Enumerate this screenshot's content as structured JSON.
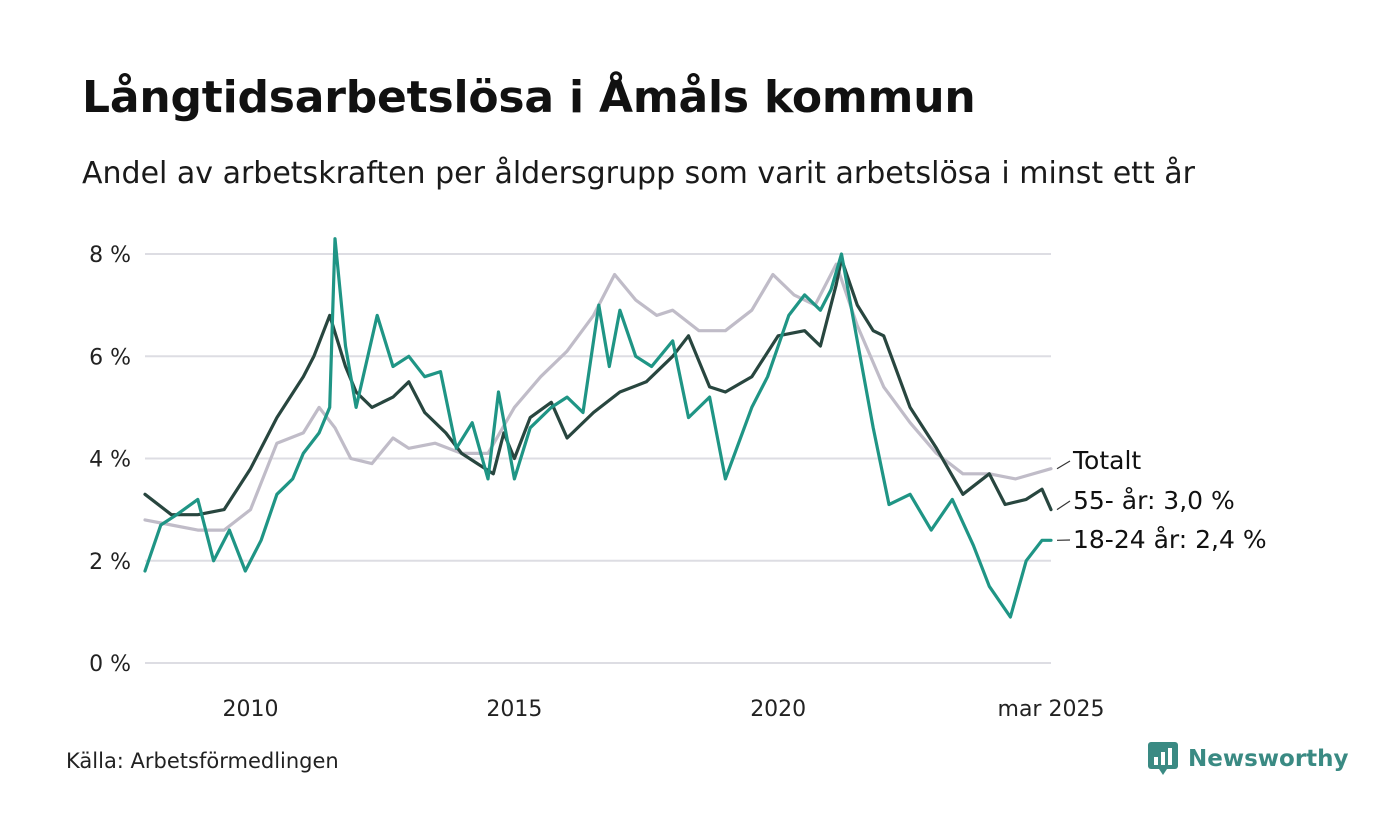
{
  "title": "Långtidsarbetslösa i Åmåls kommun",
  "subtitle": "Andel av arbetskraften per åldersgrupp som varit arbetslösa i minst ett år",
  "source": "Källa: Arbetsförmedlingen",
  "brand": {
    "name": "Newsworthy",
    "icon": "newsworthy-logo-icon",
    "color": "#3a8a83"
  },
  "chart_data": {
    "type": "line",
    "title": "Långtidsarbetslösa i Åmåls kommun",
    "subtitle": "Andel av arbetskraften per åldersgrupp som varit arbetslösa i minst ett år",
    "ylim": [
      0,
      8
    ],
    "xlim": [
      2008.0,
      2025.17
    ],
    "y_ticks": [
      {
        "value": 0,
        "label": "0 %"
      },
      {
        "value": 2,
        "label": "2 %"
      },
      {
        "value": 4,
        "label": "4 %"
      },
      {
        "value": 6,
        "label": "6 %"
      },
      {
        "value": 8,
        "label": "8 %"
      }
    ],
    "x_ticks": [
      {
        "value": 2010,
        "label": "2010"
      },
      {
        "value": 2015,
        "label": "2015"
      },
      {
        "value": 2020,
        "label": "2020"
      },
      {
        "value": 2025.17,
        "label": "mar 2025"
      }
    ],
    "grid": true,
    "legend": "end-labels",
    "series": [
      {
        "name": "Totalt",
        "end_label": "Totalt",
        "color": "#c0bcc8",
        "points": [
          [
            2008.0,
            2.8
          ],
          [
            2008.5,
            2.7
          ],
          [
            2009.0,
            2.6
          ],
          [
            2009.5,
            2.6
          ],
          [
            2010.0,
            3.0
          ],
          [
            2010.5,
            4.3
          ],
          [
            2011.0,
            4.5
          ],
          [
            2011.3,
            5.0
          ],
          [
            2011.6,
            4.6
          ],
          [
            2011.9,
            4.0
          ],
          [
            2012.3,
            3.9
          ],
          [
            2012.7,
            4.4
          ],
          [
            2013.0,
            4.2
          ],
          [
            2013.5,
            4.3
          ],
          [
            2014.0,
            4.1
          ],
          [
            2014.5,
            4.1
          ],
          [
            2015.0,
            5.0
          ],
          [
            2015.5,
            5.6
          ],
          [
            2016.0,
            6.1
          ],
          [
            2016.5,
            6.8
          ],
          [
            2016.9,
            7.6
          ],
          [
            2017.3,
            7.1
          ],
          [
            2017.7,
            6.8
          ],
          [
            2018.0,
            6.9
          ],
          [
            2018.5,
            6.5
          ],
          [
            2019.0,
            6.5
          ],
          [
            2019.5,
            6.9
          ],
          [
            2019.9,
            7.6
          ],
          [
            2020.3,
            7.2
          ],
          [
            2020.7,
            7.0
          ],
          [
            2021.1,
            7.8
          ],
          [
            2021.5,
            6.6
          ],
          [
            2022.0,
            5.4
          ],
          [
            2022.5,
            4.7
          ],
          [
            2023.0,
            4.1
          ],
          [
            2023.5,
            3.7
          ],
          [
            2024.0,
            3.7
          ],
          [
            2024.5,
            3.6
          ],
          [
            2025.17,
            3.8
          ]
        ]
      },
      {
        "name": "55- år",
        "end_label": "55- år: 3,0 %",
        "color": "#28463f",
        "points": [
          [
            2008.0,
            3.3
          ],
          [
            2008.5,
            2.9
          ],
          [
            2009.0,
            2.9
          ],
          [
            2009.5,
            3.0
          ],
          [
            2010.0,
            3.8
          ],
          [
            2010.5,
            4.8
          ],
          [
            2011.0,
            5.6
          ],
          [
            2011.2,
            6.0
          ],
          [
            2011.5,
            6.8
          ],
          [
            2011.8,
            5.8
          ],
          [
            2012.0,
            5.3
          ],
          [
            2012.3,
            5.0
          ],
          [
            2012.7,
            5.2
          ],
          [
            2013.0,
            5.5
          ],
          [
            2013.3,
            4.9
          ],
          [
            2013.7,
            4.5
          ],
          [
            2014.0,
            4.1
          ],
          [
            2014.3,
            3.9
          ],
          [
            2014.6,
            3.7
          ],
          [
            2014.8,
            4.5
          ],
          [
            2015.0,
            4.0
          ],
          [
            2015.3,
            4.8
          ],
          [
            2015.7,
            5.1
          ],
          [
            2016.0,
            4.4
          ],
          [
            2016.5,
            4.9
          ],
          [
            2017.0,
            5.3
          ],
          [
            2017.5,
            5.5
          ],
          [
            2018.0,
            6.0
          ],
          [
            2018.3,
            6.4
          ],
          [
            2018.7,
            5.4
          ],
          [
            2019.0,
            5.3
          ],
          [
            2019.5,
            5.6
          ],
          [
            2020.0,
            6.4
          ],
          [
            2020.5,
            6.5
          ],
          [
            2020.8,
            6.2
          ],
          [
            2021.1,
            7.4
          ],
          [
            2021.2,
            7.9
          ],
          [
            2021.5,
            7.0
          ],
          [
            2021.8,
            6.5
          ],
          [
            2022.0,
            6.4
          ],
          [
            2022.5,
            5.0
          ],
          [
            2023.0,
            4.2
          ],
          [
            2023.5,
            3.3
          ],
          [
            2024.0,
            3.7
          ],
          [
            2024.3,
            3.1
          ],
          [
            2024.7,
            3.2
          ],
          [
            2025.0,
            3.4
          ],
          [
            2025.17,
            3.0
          ]
        ]
      },
      {
        "name": "18-24 år",
        "end_label": "18-24 år: 2,4 %",
        "color": "#1f9585",
        "points": [
          [
            2008.0,
            1.8
          ],
          [
            2008.3,
            2.7
          ],
          [
            2008.6,
            2.9
          ],
          [
            2009.0,
            3.2
          ],
          [
            2009.3,
            2.0
          ],
          [
            2009.6,
            2.6
          ],
          [
            2009.9,
            1.8
          ],
          [
            2010.2,
            2.4
          ],
          [
            2010.5,
            3.3
          ],
          [
            2010.8,
            3.6
          ],
          [
            2011.0,
            4.1
          ],
          [
            2011.3,
            4.5
          ],
          [
            2011.5,
            5.0
          ],
          [
            2011.6,
            8.3
          ],
          [
            2011.8,
            6.2
          ],
          [
            2012.0,
            5.0
          ],
          [
            2012.4,
            6.8
          ],
          [
            2012.7,
            5.8
          ],
          [
            2013.0,
            6.0
          ],
          [
            2013.3,
            5.6
          ],
          [
            2013.6,
            5.7
          ],
          [
            2013.9,
            4.2
          ],
          [
            2014.2,
            4.7
          ],
          [
            2014.5,
            3.6
          ],
          [
            2014.7,
            5.3
          ],
          [
            2015.0,
            3.6
          ],
          [
            2015.3,
            4.6
          ],
          [
            2015.7,
            5.0
          ],
          [
            2016.0,
            5.2
          ],
          [
            2016.3,
            4.9
          ],
          [
            2016.6,
            7.0
          ],
          [
            2016.8,
            5.8
          ],
          [
            2017.0,
            6.9
          ],
          [
            2017.3,
            6.0
          ],
          [
            2017.6,
            5.8
          ],
          [
            2018.0,
            6.3
          ],
          [
            2018.3,
            4.8
          ],
          [
            2018.7,
            5.2
          ],
          [
            2019.0,
            3.6
          ],
          [
            2019.5,
            5.0
          ],
          [
            2019.8,
            5.6
          ],
          [
            2020.2,
            6.8
          ],
          [
            2020.5,
            7.2
          ],
          [
            2020.8,
            6.9
          ],
          [
            2021.0,
            7.3
          ],
          [
            2021.2,
            8.0
          ],
          [
            2021.5,
            6.3
          ],
          [
            2021.8,
            4.6
          ],
          [
            2022.1,
            3.1
          ],
          [
            2022.5,
            3.3
          ],
          [
            2022.9,
            2.6
          ],
          [
            2023.3,
            3.2
          ],
          [
            2023.7,
            2.3
          ],
          [
            2024.0,
            1.5
          ],
          [
            2024.4,
            0.9
          ],
          [
            2024.7,
            2.0
          ],
          [
            2025.0,
            2.4
          ],
          [
            2025.17,
            2.4
          ]
        ]
      }
    ]
  }
}
